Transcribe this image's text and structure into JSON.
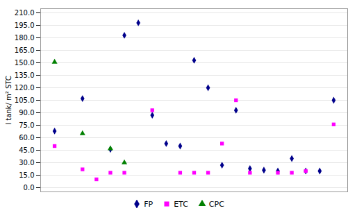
{
  "chart_data": {
    "type": "scatter",
    "ylabel": "l tank/ m² STC",
    "series": [
      {
        "name": "FP",
        "color": "#00008B",
        "marker": "diamond",
        "x": [
          1,
          3,
          5,
          6,
          7,
          8,
          9,
          10,
          11,
          12,
          13,
          14,
          15,
          16,
          17,
          18,
          19,
          20,
          21
        ],
        "values": [
          68,
          107,
          46,
          183,
          198,
          87,
          53,
          50,
          153,
          120,
          27,
          93,
          23,
          21,
          20,
          35,
          20,
          20,
          105
        ]
      },
      {
        "name": "ETC",
        "color": "#FF00FF",
        "marker": "square",
        "x": [
          1,
          3,
          4,
          5,
          6,
          8,
          10,
          11,
          12,
          13,
          14,
          15,
          17,
          18,
          19,
          21
        ],
        "values": [
          50,
          22,
          10,
          18,
          18,
          93,
          18,
          18,
          18,
          53,
          105,
          18,
          18,
          18,
          20,
          76
        ]
      },
      {
        "name": "CPC",
        "color": "#008000",
        "marker": "triangle",
        "x": [
          1,
          3,
          5,
          6
        ],
        "values": [
          151,
          65,
          47,
          30
        ]
      }
    ],
    "xlim": [
      0,
      22
    ],
    "xticks": [],
    "ylim": [
      -5,
      215
    ],
    "yticks": [
      {
        "value": 0,
        "label": "0.0"
      },
      {
        "value": 15,
        "label": "15.0"
      },
      {
        "value": 30,
        "label": "30.0"
      },
      {
        "value": 45,
        "label": "45.0"
      },
      {
        "value": 60,
        "label": "60.0"
      },
      {
        "value": 75,
        "label": "75.0"
      },
      {
        "value": 90,
        "label": "90.0"
      },
      {
        "value": 105,
        "label": "105.0"
      },
      {
        "value": 120,
        "label": "120.0"
      },
      {
        "value": 135,
        "label": "135.0"
      },
      {
        "value": 150,
        "label": "150.0"
      },
      {
        "value": 165,
        "label": "165.0"
      },
      {
        "value": 180,
        "label": "180.0"
      },
      {
        "value": 195,
        "label": "195.0"
      },
      {
        "value": 210,
        "label": "210.0"
      }
    ],
    "grid": true,
    "legend": "bottom",
    "tick_labels": "y"
  }
}
